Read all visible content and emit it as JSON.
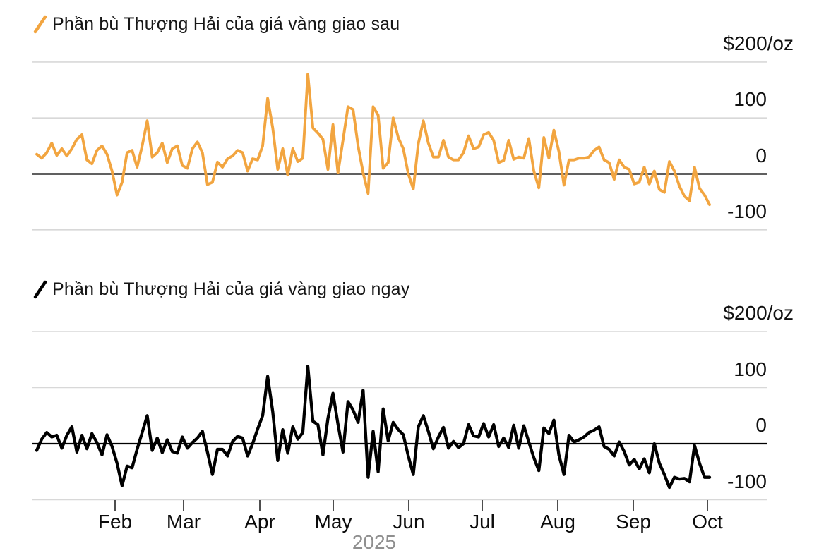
{
  "x_axis": {
    "year_label": "2025"
  },
  "units": "$/oz",
  "colors": {
    "futures_line": "#F2A540",
    "spot_line": "#000000",
    "gridline": "#d8d8d8",
    "zero_line": "#000000",
    "axis_text": "#0c0c0c",
    "year_text": "#8f8f8f"
  },
  "chart_data": [
    {
      "type": "line",
      "title": "Phần bù Thượng Hải của giá vàng giao sau",
      "color": "#F2A540",
      "ylabel": "$/oz",
      "ylim": [
        -100,
        200
      ],
      "y_gridlines": [
        200,
        100,
        0,
        -100
      ],
      "y_tick_labels": [
        "$200/oz",
        "100",
        "0",
        "-100"
      ],
      "x_tick_labels": [
        "Feb",
        "Mar",
        "Apr",
        "May",
        "Jun",
        "Jul",
        "Aug",
        "Sep",
        "Oct"
      ],
      "x_range": "daily, Jan 2025 - early Oct 2025",
      "grid": true,
      "legend_position": "top-left",
      "values": [
        35,
        28,
        38,
        55,
        33,
        45,
        32,
        45,
        62,
        70,
        25,
        18,
        42,
        50,
        35,
        5,
        -38,
        -15,
        38,
        42,
        12,
        50,
        95,
        30,
        38,
        55,
        20,
        45,
        50,
        15,
        10,
        45,
        57,
        38,
        -19,
        -15,
        21,
        12,
        27,
        32,
        42,
        38,
        5,
        27,
        25,
        50,
        135,
        82,
        8,
        45,
        -2,
        45,
        22,
        28,
        178,
        82,
        73,
        62,
        8,
        88,
        2,
        60,
        120,
        115,
        50,
        2,
        -35,
        120,
        105,
        10,
        20,
        100,
        65,
        45,
        0,
        -27,
        54,
        95,
        55,
        30,
        30,
        60,
        30,
        25,
        25,
        38,
        68,
        45,
        48,
        70,
        74,
        60,
        20,
        24,
        60,
        26,
        30,
        28,
        63,
        5,
        -25,
        65,
        28,
        78,
        40,
        -20,
        25,
        25,
        28,
        28,
        30,
        42,
        48,
        25,
        20,
        -10,
        25,
        12,
        8,
        -18,
        -15,
        12,
        -18,
        5,
        -28,
        -33,
        22,
        5,
        -22,
        -40,
        -48,
        12,
        -26,
        -38,
        -55
      ]
    },
    {
      "type": "line",
      "title": "Phần bù Thượng Hải của giá vàng giao ngay",
      "color": "#000000",
      "ylabel": "$/oz",
      "ylim": [
        -100,
        200
      ],
      "y_gridlines": [
        200,
        100,
        0,
        -100
      ],
      "y_tick_labels": [
        "$200/oz",
        "100",
        "0",
        "-100"
      ],
      "x_tick_labels": [
        "Feb",
        "Mar",
        "Apr",
        "May",
        "Jun",
        "Jul",
        "Aug",
        "Sep",
        "Oct"
      ],
      "x_range": "daily, Jan 2025 - early Oct 2025",
      "grid": true,
      "legend_position": "top-left",
      "values": [
        -12,
        8,
        20,
        12,
        15,
        -8,
        15,
        30,
        -15,
        15,
        -9,
        18,
        2,
        -20,
        16,
        -5,
        -35,
        -75,
        -40,
        -43,
        -10,
        20,
        50,
        -12,
        10,
        -16,
        7,
        -14,
        -17,
        12,
        -8,
        2,
        10,
        22,
        -15,
        -55,
        -10,
        -10,
        -22,
        4,
        13,
        10,
        -22,
        0,
        26,
        50,
        120,
        57,
        -30,
        25,
        -17,
        30,
        8,
        20,
        138,
        40,
        34,
        -20,
        45,
        90,
        35,
        -15,
        75,
        60,
        38,
        95,
        -60,
        22,
        -50,
        62,
        5,
        38,
        25,
        16,
        -22,
        -55,
        30,
        50,
        22,
        -9,
        12,
        29,
        -8,
        4,
        -7,
        0,
        34,
        14,
        12,
        36,
        12,
        34,
        -5,
        10,
        -7,
        33,
        -8,
        32,
        3,
        -25,
        -48,
        28,
        18,
        42,
        -20,
        -55,
        15,
        3,
        7,
        12,
        20,
        24,
        30,
        -5,
        -10,
        -22,
        3,
        -14,
        -38,
        -28,
        -45,
        -27,
        -52,
        0,
        -35,
        -55,
        -78,
        -60,
        -63,
        -62,
        -68,
        -3,
        -35,
        -60,
        -60
      ]
    }
  ]
}
